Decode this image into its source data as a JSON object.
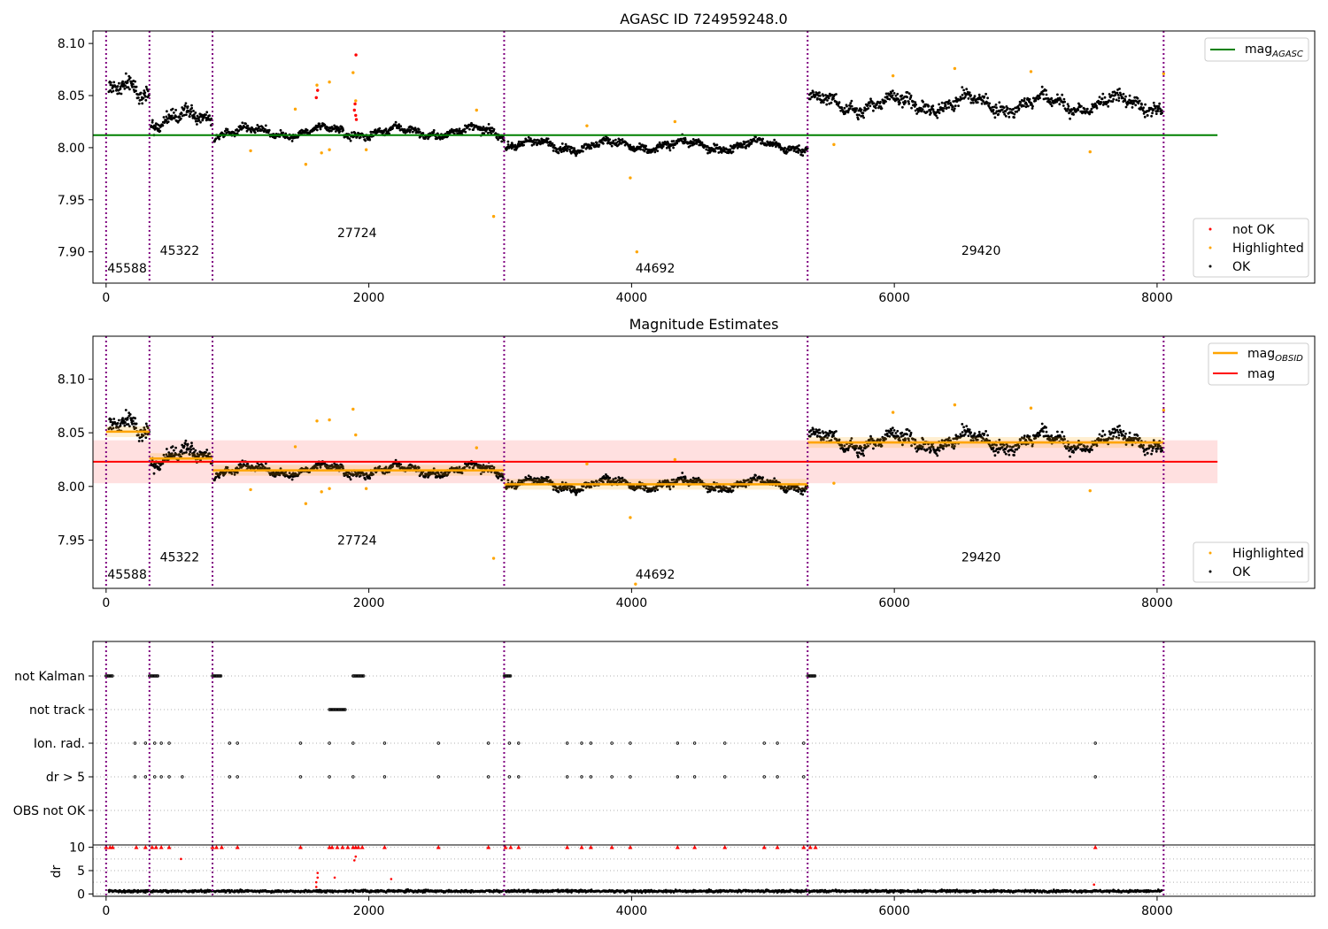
{
  "colors": {
    "ok": "#000000",
    "highlighted": "#ffa500",
    "not_ok": "#ff0000",
    "mag_agasc_line": "#008000",
    "mag_obsid_line": "#ffa500",
    "mag_line": "#ff0000",
    "mag_band": "#ffcccc",
    "obs_boundary": "#800080",
    "grid": "#b0b0b0"
  },
  "chart_data": [
    {
      "type": "scatter",
      "title": "AGASC ID 724959248.0",
      "xlabel": "",
      "ylabel": "",
      "xlim": [
        -100,
        9200
      ],
      "ylim": [
        7.87,
        8.112
      ],
      "x_ticks": [
        "0",
        "2000",
        "4000",
        "6000",
        "8000"
      ],
      "y_ticks": [
        "7.90",
        "7.95",
        "8.00",
        "8.05",
        "8.10"
      ],
      "grid": false,
      "legend_top": {
        "position": "top-right",
        "entries": [
          "mag$_{AGASC}$"
        ]
      },
      "legend_bottom": {
        "position": "bottom-right",
        "entries": [
          "not OK",
          "Highlighted",
          "OK"
        ]
      },
      "mag_agasc": 8.012,
      "mag_agasc_xrange": [
        -100,
        8460
      ],
      "obs_boundaries": [
        0,
        330,
        810,
        3030,
        5340,
        8050
      ],
      "obs_labels": [
        {
          "obsid": "45588",
          "x": 10,
          "y": 7.88
        },
        {
          "obsid": "45322",
          "x": 410,
          "y": 7.897
        },
        {
          "obsid": "27724",
          "x": 1760,
          "y": 7.914
        },
        {
          "obsid": "44692",
          "x": 4030,
          "y": 7.88
        },
        {
          "obsid": "29420",
          "x": 6510,
          "y": 7.897
        }
      ],
      "segments": [
        {
          "name": "45588",
          "x_start": 20,
          "x_end": 330,
          "level": 8.052,
          "spread": 0.012,
          "n_points": 90
        },
        {
          "name": "45322",
          "x_start": 340,
          "x_end": 810,
          "level": 8.027,
          "spread": 0.01,
          "n_points": 140
        },
        {
          "name": "27724",
          "x_start": 820,
          "x_end": 3030,
          "level": 8.015,
          "spread": 0.006,
          "n_points": 600
        },
        {
          "name": "44692",
          "x_start": 3040,
          "x_end": 5340,
          "level": 8.002,
          "spread": 0.006,
          "n_points": 650
        },
        {
          "name": "29420",
          "x_start": 5350,
          "x_end": 8040,
          "level": 8.042,
          "spread": 0.01,
          "n_points": 700
        }
      ],
      "highlighted_points": [
        [
          2950,
          7.934
        ],
        [
          4040,
          7.9
        ],
        [
          3990,
          7.971
        ],
        [
          7490,
          7.996
        ],
        [
          5540,
          8.003
        ],
        [
          1520,
          7.984
        ],
        [
          1640,
          7.995
        ],
        [
          1700,
          7.998
        ],
        [
          1900,
          8.045
        ],
        [
          1700,
          8.063
        ],
        [
          1605,
          8.06
        ],
        [
          1880,
          8.072
        ],
        [
          1440,
          8.037
        ],
        [
          2820,
          8.036
        ],
        [
          6460,
          8.076
        ],
        [
          8050,
          8.071
        ],
        [
          7040,
          8.073
        ],
        [
          5990,
          8.069
        ],
        [
          4330,
          8.025
        ],
        [
          3660,
          8.021
        ],
        [
          1100,
          7.997
        ],
        [
          1980,
          7.998
        ]
      ],
      "not_ok_points": [
        [
          1600,
          8.048
        ],
        [
          1610,
          8.055
        ],
        [
          1890,
          8.036
        ],
        [
          1895,
          8.042
        ],
        [
          1900,
          8.031
        ],
        [
          1902,
          8.089
        ],
        [
          1905,
          8.027
        ]
      ]
    },
    {
      "type": "scatter",
      "title": "Magnitude Estimates",
      "xlabel": "",
      "ylabel": "",
      "xlim": [
        -100,
        9200
      ],
      "ylim": [
        7.905,
        8.14
      ],
      "x_ticks": [
        "0",
        "2000",
        "4000",
        "6000",
        "8000"
      ],
      "y_ticks": [
        "7.95",
        "8.00",
        "8.05",
        "8.10"
      ],
      "grid": false,
      "legend_top": {
        "position": "top-right",
        "entries": [
          "mag$_{OBSID}$",
          "mag"
        ]
      },
      "legend_bottom": {
        "position": "bottom-right",
        "entries": [
          "Highlighted",
          "OK"
        ]
      },
      "mag": 8.023,
      "mag_band": [
        8.003,
        8.043
      ],
      "mag_xrange": [
        -100,
        8460
      ],
      "mag_obsid": [
        {
          "x_start": 0,
          "x_end": 330,
          "value": 8.051
        },
        {
          "x_start": 330,
          "x_end": 810,
          "value": 8.026
        },
        {
          "x_start": 810,
          "x_end": 3030,
          "value": 8.015
        },
        {
          "x_start": 3030,
          "x_end": 5340,
          "value": 8.002
        },
        {
          "x_start": 5340,
          "x_end": 8050,
          "value": 8.041
        }
      ],
      "obs_boundaries": [
        0,
        330,
        810,
        3030,
        5340,
        8050
      ],
      "obs_labels": [
        {
          "obsid": "45588",
          "x": 10,
          "y": 7.914
        },
        {
          "obsid": "45322",
          "x": 410,
          "y": 7.93
        },
        {
          "obsid": "27724",
          "x": 1760,
          "y": 7.946
        },
        {
          "obsid": "44692",
          "x": 4030,
          "y": 7.914
        },
        {
          "obsid": "29420",
          "x": 6510,
          "y": 7.93
        }
      ],
      "highlighted_points": [
        [
          2950,
          7.933
        ],
        [
          4030,
          7.909
        ],
        [
          3990,
          7.971
        ],
        [
          7490,
          7.996
        ],
        [
          5540,
          8.003
        ],
        [
          1520,
          7.984
        ],
        [
          1640,
          7.995
        ],
        [
          1700,
          7.998
        ],
        [
          1900,
          8.048
        ],
        [
          1700,
          8.062
        ],
        [
          1605,
          8.061
        ],
        [
          1880,
          8.072
        ],
        [
          1440,
          8.037
        ],
        [
          2820,
          8.036
        ],
        [
          6460,
          8.076
        ],
        [
          8050,
          8.071
        ],
        [
          7040,
          8.073
        ],
        [
          5990,
          8.069
        ],
        [
          4330,
          8.025
        ],
        [
          3660,
          8.021
        ],
        [
          1100,
          7.997
        ],
        [
          1980,
          7.998
        ]
      ]
    },
    {
      "type": "scatter",
      "title": "",
      "xlabel": "",
      "ylabel": "",
      "xlim": [
        -100,
        9200
      ],
      "categories": [
        "not Kalman",
        "not track",
        "Ion. rad.",
        "dr > 5",
        "OBS not OK"
      ],
      "grid": true,
      "flags": {
        "not Kalman": [
          [
            0,
            50
          ],
          [
            330,
            400
          ],
          [
            810,
            880
          ],
          [
            1880,
            1960
          ],
          [
            3030,
            3080
          ],
          [
            5340,
            5400
          ]
        ],
        "not track": [
          [
            1700,
            1820
          ]
        ],
        "Ion. rad.": [
          220,
          300,
          370,
          420,
          480,
          940,
          1000,
          1480,
          1700,
          1880,
          2120,
          2530,
          2910,
          3070,
          3140,
          3510,
          3620,
          3690,
          3850,
          3990,
          4350,
          4480,
          4710,
          5010,
          5110,
          5310,
          7530
        ],
        "dr > 5": [
          220,
          300,
          370,
          420,
          480,
          580,
          940,
          1000,
          1480,
          1700,
          1880,
          2120,
          2530,
          2910,
          3070,
          3140,
          3510,
          3620,
          3690,
          3850,
          3990,
          4350,
          4480,
          4710,
          5010,
          5110,
          5310,
          7530
        ],
        "OBS not OK": []
      }
    },
    {
      "type": "scatter",
      "title": "",
      "xlabel": "",
      "ylabel": "dr",
      "xlim": [
        -100,
        9200
      ],
      "ylim": [
        -0.5,
        10.5
      ],
      "x_ticks": [
        "0",
        "2000",
        "4000",
        "6000",
        "8000"
      ],
      "y_ticks": [
        "0",
        "5",
        "10"
      ],
      "grid": true,
      "typical_dr": 0.6,
      "clipped_value": 10,
      "clipped_x": [
        0,
        30,
        50,
        230,
        300,
        350,
        380,
        420,
        480,
        810,
        840,
        880,
        1000,
        1480,
        1700,
        1720,
        1760,
        1800,
        1840,
        1880,
        1900,
        1920,
        1950,
        2120,
        2530,
        2910,
        3040,
        3080,
        3140,
        3510,
        3620,
        3690,
        3850,
        3990,
        4350,
        4480,
        4710,
        5010,
        5110,
        5310,
        5360,
        5400,
        7530
      ],
      "spike_points": [
        [
          570,
          7.5
        ],
        [
          1600,
          1.5
        ],
        [
          1600,
          2.5
        ],
        [
          1610,
          3.5
        ],
        [
          1610,
          4.5
        ],
        [
          1740,
          3.5
        ],
        [
          1890,
          7.2
        ],
        [
          1900,
          8.0
        ],
        [
          2170,
          3.2
        ],
        [
          7520,
          2.0
        ]
      ]
    }
  ]
}
